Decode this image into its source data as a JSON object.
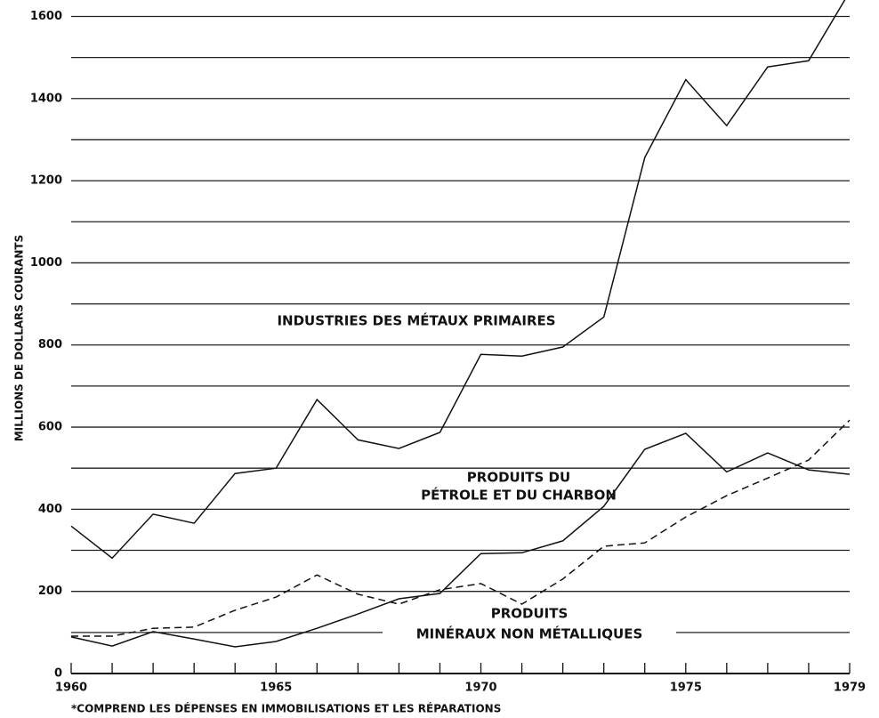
{
  "chart_data": {
    "type": "line",
    "ylabel": "MILLIONS DE DOLLARS COURANTS",
    "footnote": "*COMPREND LES DÉPENSES EN IMMOBILISATIONS ET LES RÉPARATIONS",
    "x": [
      1960,
      1961,
      1962,
      1963,
      1964,
      1965,
      1966,
      1967,
      1968,
      1969,
      1970,
      1971,
      1972,
      1973,
      1974,
      1975,
      1976,
      1977,
      1978,
      1979
    ],
    "xlim": [
      1960,
      1979
    ],
    "xticks": [
      1960,
      1965,
      1970,
      1975,
      1979
    ],
    "ylim": [
      0,
      1640
    ],
    "yticks": [
      0,
      200,
      400,
      600,
      800,
      1000,
      1200,
      1400,
      1600
    ],
    "grid_lines": [
      100,
      200,
      300,
      400,
      500,
      600,
      700,
      800,
      900,
      1000,
      1100,
      1200,
      1300,
      1400,
      1500,
      1600
    ],
    "series": [
      {
        "name": [
          "INDUSTRIES DES MÉTAUX PRIMAIRES"
        ],
        "color": "#111111",
        "dash": false,
        "values": [
          359,
          281,
          388,
          366,
          487,
          500,
          667,
          569,
          548,
          587,
          777,
          773,
          795,
          868,
          1256,
          1446,
          1334,
          1477,
          1492,
          1660
        ]
      },
      {
        "name": [
          "PRODUITS DU",
          "PÉTROLE ET DU CHARBON"
        ],
        "color": "#111111",
        "dash": false,
        "values": [
          89,
          67,
          102,
          84,
          65,
          78,
          110,
          145,
          182,
          195,
          292,
          294,
          323,
          407,
          546,
          585,
          491,
          537,
          496,
          485
        ]
      },
      {
        "name": [
          "PRODUITS",
          "MINÉRAUX NON MÉTALLIQUES"
        ],
        "color": "#111111",
        "dash": true,
        "values": [
          91,
          91,
          110,
          113,
          154,
          186,
          240,
          193,
          169,
          204,
          219,
          169,
          230,
          310,
          318,
          381,
          433,
          476,
          520,
          617
        ]
      }
    ]
  }
}
